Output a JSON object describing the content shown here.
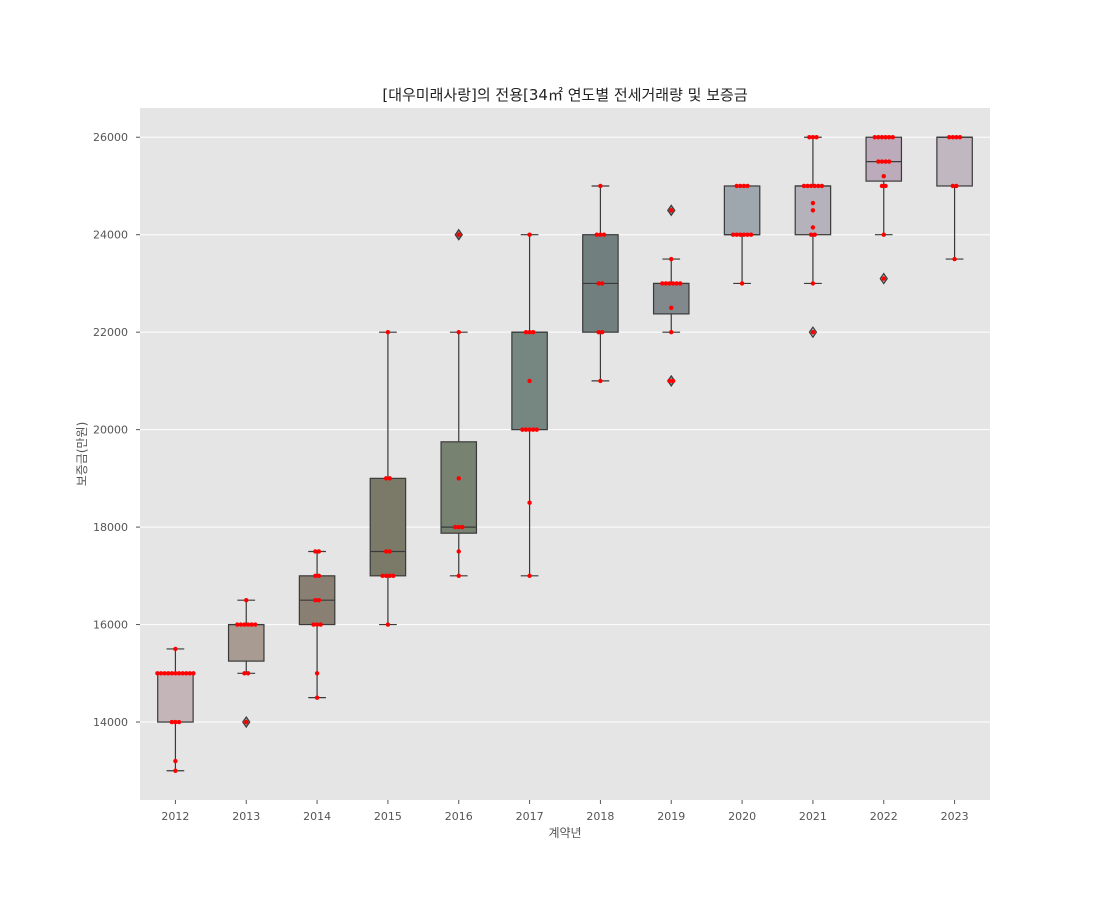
{
  "chart_data": {
    "type": "box",
    "title": "[대우미래사랑]의 전용[34㎡ 연도별 전세거래량 및 보증금",
    "xlabel": "계약년",
    "ylabel": "보증금(만원)",
    "ylim": [
      12400,
      26600
    ],
    "yticks": [
      14000,
      16000,
      18000,
      20000,
      22000,
      24000,
      26000
    ],
    "grid": true,
    "background": "#e5e5e5",
    "point_color": "#ff0000",
    "categories": [
      "2012",
      "2013",
      "2014",
      "2015",
      "2016",
      "2017",
      "2018",
      "2019",
      "2020",
      "2021",
      "2022",
      "2023"
    ],
    "boxes": [
      {
        "year": "2012",
        "q1": 14000,
        "median": 15000,
        "q3": 15000,
        "whisker_low": 13000,
        "whisker_high": 15500,
        "outliers": [],
        "color": "#c4b5b8",
        "points": [
          13000,
          13200,
          14000,
          14000,
          14000,
          15000,
          15000,
          15000,
          15000,
          15000,
          15000,
          15000,
          15000,
          15000,
          15000,
          15000,
          15500
        ]
      },
      {
        "year": "2013",
        "q1": 15250,
        "median": 16000,
        "q3": 16000,
        "whisker_low": 15000,
        "whisker_high": 16500,
        "outliers": [
          14000
        ],
        "color": "#a89b91",
        "points": [
          14000,
          15000,
          15000,
          16000,
          16000,
          16000,
          16000,
          16000,
          16000,
          16500
        ]
      },
      {
        "year": "2014",
        "q1": 16000,
        "median": 16500,
        "q3": 17000,
        "whisker_low": 14500,
        "whisker_high": 17500,
        "outliers": [],
        "color": "#8a7f73",
        "points": [
          14500,
          15000,
          16000,
          16000,
          16000,
          16500,
          16500,
          17000,
          17000,
          17500,
          17500
        ]
      },
      {
        "year": "2015",
        "q1": 17000,
        "median": 17500,
        "q3": 19000,
        "whisker_low": 16000,
        "whisker_high": 22000,
        "outliers": [],
        "color": "#7b7a68",
        "points": [
          16000,
          17000,
          17000,
          17000,
          17000,
          17500,
          17500,
          19000,
          19000,
          22000
        ]
      },
      {
        "year": "2016",
        "q1": 17875,
        "median": 18000,
        "q3": 19750,
        "whisker_low": 17000,
        "whisker_high": 22000,
        "outliers": [
          24000
        ],
        "color": "#778270",
        "points": [
          17000,
          17500,
          18000,
          18000,
          18000,
          19000,
          22000,
          24000
        ]
      },
      {
        "year": "2017",
        "q1": 20000,
        "median": 22000,
        "q3": 22000,
        "whisker_low": 17000,
        "whisker_high": 24000,
        "outliers": [],
        "color": "#768680",
        "points": [
          17000,
          18500,
          20000,
          20000,
          20000,
          20000,
          20000,
          21000,
          22000,
          22000,
          22000,
          24000
        ]
      },
      {
        "year": "2018",
        "q1": 22000,
        "median": 23000,
        "q3": 24000,
        "whisker_low": 21000,
        "whisker_high": 25000,
        "outliers": [],
        "color": "#717f7f",
        "points": [
          21000,
          22000,
          22000,
          23000,
          23000,
          24000,
          24000,
          24000,
          25000
        ]
      },
      {
        "year": "2019",
        "q1": 22375,
        "median": 23000,
        "q3": 23000,
        "whisker_low": 22000,
        "whisker_high": 23500,
        "outliers": [
          21000,
          24500
        ],
        "color": "#81898d",
        "points": [
          21000,
          21000,
          22000,
          22500,
          23000,
          23000,
          23000,
          23000,
          23000,
          23000,
          23500,
          24500
        ]
      },
      {
        "year": "2020",
        "q1": 24000,
        "median": 24000,
        "q3": 25000,
        "whisker_low": 23000,
        "whisker_high": 25000,
        "outliers": [],
        "color": "#9ea6ae",
        "points": [
          23000,
          24000,
          24000,
          24000,
          24000,
          24000,
          24000,
          25000,
          25000,
          25000,
          25000
        ]
      },
      {
        "year": "2021",
        "q1": 24000,
        "median": 25000,
        "q3": 25000,
        "whisker_low": 23000,
        "whisker_high": 26000,
        "outliers": [
          22000
        ],
        "color": "#b5b2bb",
        "points": [
          22000,
          23000,
          24000,
          24000,
          24150,
          24500,
          24650,
          25000,
          25000,
          25000,
          25000,
          25000,
          25000,
          26000,
          26000,
          26000
        ]
      },
      {
        "year": "2022",
        "q1": 25100,
        "median": 25500,
        "q3": 26000,
        "whisker_low": 24000,
        "whisker_high": 26000,
        "outliers": [
          23100
        ],
        "color": "#bcabba",
        "points": [
          23100,
          24000,
          25000,
          25000,
          25200,
          25500,
          25500,
          25500,
          25500,
          26000,
          26000,
          26000,
          26000,
          26000,
          26000
        ]
      },
      {
        "year": "2023",
        "q1": 25000,
        "median": 26000,
        "q3": 26000,
        "whisker_low": 23500,
        "whisker_high": 26000,
        "outliers": [],
        "color": "#c1b7c0",
        "points": [
          23500,
          25000,
          25000,
          26000,
          26000,
          26000,
          26000
        ]
      }
    ]
  }
}
